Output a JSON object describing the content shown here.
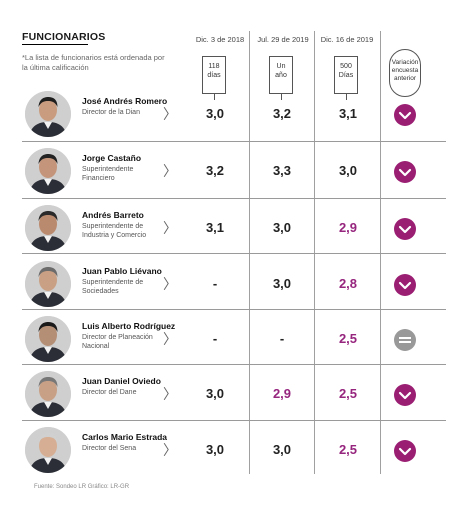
{
  "title": "FUNCIONARIOS",
  "note": "*La lista de funcionarios está ordenada por la última calificación",
  "columns": [
    {
      "date": "Dic. 3 de 2018",
      "callout": "118 días"
    },
    {
      "date": "Jul. 29 de 2019",
      "callout": "Un año"
    },
    {
      "date": "Dic. 16 de 2019",
      "callout": "500 Días"
    }
  ],
  "variation_header": "Variación encuesta anterior",
  "chevron": "〉",
  "officials": [
    {
      "name": "José Andrés Romero",
      "role": "Director de la Dian",
      "scores": [
        "3,0",
        "3,2",
        "3,1"
      ],
      "purple": [
        false,
        false,
        false
      ],
      "variation": "down"
    },
    {
      "name": "Jorge Castaño",
      "role": "Superintendente Financiero",
      "scores": [
        "3,2",
        "3,3",
        "3,0"
      ],
      "purple": [
        false,
        false,
        false
      ],
      "variation": "down"
    },
    {
      "name": "Andrés Barreto",
      "role": "Superintendente de Industria y Comercio",
      "scores": [
        "3,1",
        "3,0",
        "2,9"
      ],
      "purple": [
        false,
        false,
        true
      ],
      "variation": "down"
    },
    {
      "name": "Juan Pablo Liévano",
      "role": "Superintendente de Sociedades",
      "scores": [
        "-",
        "3,0",
        "2,8"
      ],
      "purple": [
        false,
        false,
        true
      ],
      "variation": "down"
    },
    {
      "name": "Luis Alberto Rodríguez",
      "role": "Director de Planeación Nacional",
      "scores": [
        "-",
        "-",
        "2,5"
      ],
      "purple": [
        false,
        false,
        true
      ],
      "variation": "equal"
    },
    {
      "name": "Juan Daniel Oviedo",
      "role": "Director del Dane",
      "scores": [
        "3,0",
        "2,9",
        "2,5"
      ],
      "purple": [
        false,
        true,
        true
      ],
      "variation": "down"
    },
    {
      "name": "Carlos Mario Estrada",
      "role": "Director del Sena",
      "scores": [
        "3,0",
        "3,0",
        "2,5"
      ],
      "purple": [
        false,
        false,
        true
      ],
      "variation": "down"
    }
  ],
  "colors": {
    "accent": "#96257e",
    "badge": "#9a1f73",
    "neutral": "#999999"
  },
  "footer": "Fuente: Sondeo LR     Gráfico: LR-GR"
}
